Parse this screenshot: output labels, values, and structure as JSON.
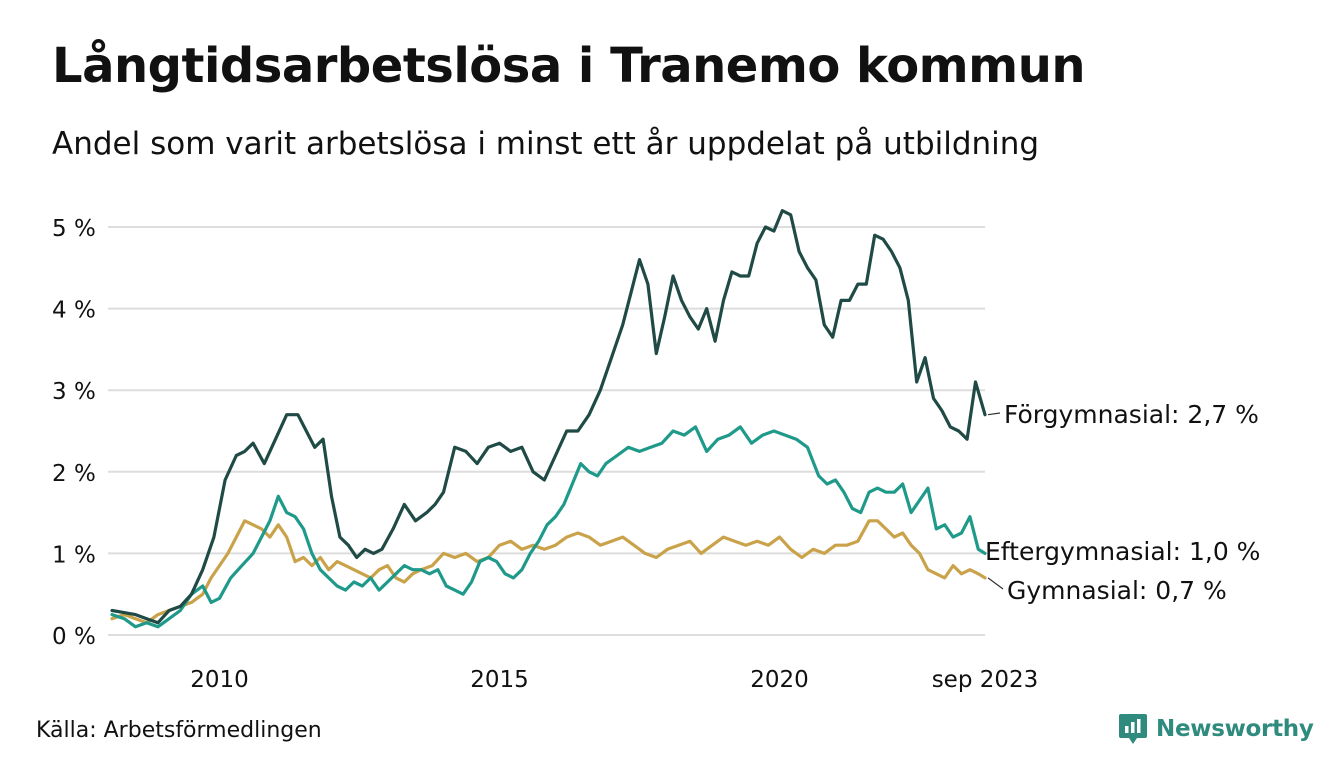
{
  "title": "Långtidsarbetslösa i Tranemo kommun",
  "subtitle": "Andel som varit arbetslösa i minst ett år uppdelat på utbildning",
  "source": "Källa: Arbetsförmedlingen",
  "brand": "Newsworthy",
  "colors": {
    "grid": "#dddddd",
    "brand": "#2e8b7e"
  },
  "chart_data": {
    "type": "line",
    "xlim": [
      2008.08,
      2023.67
    ],
    "ylim": [
      0,
      5.3
    ],
    "yticks": [
      0,
      1,
      2,
      3,
      4,
      5
    ],
    "ytick_labels": [
      "0 %",
      "1 %",
      "2 %",
      "3 %",
      "4 %",
      "5 %"
    ],
    "xticks": [
      2010,
      2015,
      2020,
      2023.67
    ],
    "xtick_labels": [
      "2010",
      "2015",
      "2020",
      "sep 2023"
    ],
    "series": [
      {
        "name": "Förgymnasial",
        "label": "Förgymnasial: 2,7 %",
        "color": "#1f4a45",
        "x": [
          2008.08,
          2008.5,
          2008.7,
          2008.9,
          2009.1,
          2009.3,
          2009.5,
          2009.7,
          2009.9,
          2010.1,
          2010.3,
          2010.45,
          2010.6,
          2010.8,
          2011.0,
          2011.2,
          2011.4,
          2011.55,
          2011.7,
          2011.85,
          2012.0,
          2012.15,
          2012.3,
          2012.45,
          2012.6,
          2012.75,
          2012.9,
          2013.1,
          2013.3,
          2013.5,
          2013.7,
          2013.85,
          2014.0,
          2014.2,
          2014.4,
          2014.6,
          2014.8,
          2015.0,
          2015.2,
          2015.4,
          2015.6,
          2015.8,
          2016.0,
          2016.2,
          2016.4,
          2016.6,
          2016.8,
          2017.0,
          2017.2,
          2017.35,
          2017.5,
          2017.65,
          2017.8,
          2017.95,
          2018.1,
          2018.25,
          2018.4,
          2018.55,
          2018.7,
          2018.85,
          2019.0,
          2019.15,
          2019.3,
          2019.45,
          2019.6,
          2019.75,
          2019.9,
          2020.05,
          2020.2,
          2020.35,
          2020.5,
          2020.65,
          2020.8,
          2020.95,
          2021.1,
          2021.25,
          2021.4,
          2021.55,
          2021.7,
          2021.85,
          2022.0,
          2022.15,
          2022.3,
          2022.45,
          2022.6,
          2022.75,
          2022.9,
          2023.05,
          2023.2,
          2023.35,
          2023.5,
          2023.67
        ],
        "y": [
          0.3,
          0.25,
          0.2,
          0.15,
          0.3,
          0.35,
          0.5,
          0.8,
          1.2,
          1.9,
          2.2,
          2.25,
          2.35,
          2.1,
          2.4,
          2.7,
          2.7,
          2.5,
          2.3,
          2.4,
          1.7,
          1.2,
          1.1,
          0.95,
          1.05,
          1.0,
          1.05,
          1.3,
          1.6,
          1.4,
          1.5,
          1.6,
          1.75,
          2.3,
          2.25,
          2.1,
          2.3,
          2.35,
          2.25,
          2.3,
          2.0,
          1.9,
          2.2,
          2.5,
          2.5,
          2.7,
          3.0,
          3.4,
          3.8,
          4.2,
          4.6,
          4.3,
          3.45,
          3.9,
          4.4,
          4.1,
          3.9,
          3.75,
          4.0,
          3.6,
          4.1,
          4.45,
          4.4,
          4.4,
          4.8,
          5.0,
          4.95,
          5.2,
          5.15,
          4.7,
          4.5,
          4.35,
          3.8,
          3.65,
          4.1,
          4.1,
          4.3,
          4.3,
          4.9,
          4.85,
          4.7,
          4.5,
          4.1,
          3.1,
          3.4,
          2.9,
          2.75,
          2.55,
          2.5,
          2.4,
          3.1,
          2.7
        ]
      },
      {
        "name": "Eftergymnasial",
        "label": "Eftergymnasial: 1,0 %",
        "color": "#1f9a8a",
        "x": [
          2008.08,
          2008.3,
          2008.5,
          2008.7,
          2008.9,
          2009.1,
          2009.3,
          2009.5,
          2009.7,
          2009.85,
          2010.0,
          2010.2,
          2010.4,
          2010.6,
          2010.75,
          2010.9,
          2011.05,
          2011.2,
          2011.35,
          2011.5,
          2011.65,
          2011.8,
          2011.95,
          2012.1,
          2012.25,
          2012.4,
          2012.55,
          2012.7,
          2012.85,
          2013.0,
          2013.15,
          2013.3,
          2013.45,
          2013.6,
          2013.75,
          2013.9,
          2014.05,
          2014.2,
          2014.35,
          2014.5,
          2014.65,
          2014.8,
          2014.95,
          2015.1,
          2015.25,
          2015.4,
          2015.55,
          2015.7,
          2015.85,
          2016.0,
          2016.15,
          2016.3,
          2016.45,
          2016.6,
          2016.75,
          2016.9,
          2017.1,
          2017.3,
          2017.5,
          2017.7,
          2017.9,
          2018.1,
          2018.3,
          2018.5,
          2018.7,
          2018.9,
          2019.1,
          2019.3,
          2019.5,
          2019.7,
          2019.9,
          2020.1,
          2020.3,
          2020.5,
          2020.7,
          2020.85,
          2021.0,
          2021.15,
          2021.3,
          2021.45,
          2021.6,
          2021.75,
          2021.9,
          2022.05,
          2022.2,
          2022.35,
          2022.5,
          2022.65,
          2022.8,
          2022.95,
          2023.1,
          2023.25,
          2023.4,
          2023.55,
          2023.67
        ],
        "y": [
          0.25,
          0.2,
          0.1,
          0.15,
          0.1,
          0.2,
          0.3,
          0.5,
          0.6,
          0.4,
          0.45,
          0.7,
          0.85,
          1.0,
          1.2,
          1.4,
          1.7,
          1.5,
          1.45,
          1.3,
          1.0,
          0.8,
          0.7,
          0.6,
          0.55,
          0.65,
          0.6,
          0.7,
          0.55,
          0.65,
          0.75,
          0.85,
          0.8,
          0.8,
          0.75,
          0.8,
          0.6,
          0.55,
          0.5,
          0.65,
          0.9,
          0.95,
          0.9,
          0.75,
          0.7,
          0.8,
          1.0,
          1.15,
          1.35,
          1.45,
          1.6,
          1.85,
          2.1,
          2.0,
          1.95,
          2.1,
          2.2,
          2.3,
          2.25,
          2.3,
          2.35,
          2.5,
          2.45,
          2.55,
          2.25,
          2.4,
          2.45,
          2.55,
          2.35,
          2.45,
          2.5,
          2.45,
          2.4,
          2.3,
          1.95,
          1.85,
          1.9,
          1.75,
          1.55,
          1.5,
          1.75,
          1.8,
          1.75,
          1.75,
          1.85,
          1.5,
          1.65,
          1.8,
          1.3,
          1.35,
          1.2,
          1.25,
          1.45,
          1.05,
          1.0
        ]
      },
      {
        "name": "Gymnasial",
        "label": "Gymnasial: 0,7 %",
        "color": "#c9a24a",
        "x": [
          2008.08,
          2008.3,
          2008.5,
          2008.7,
          2008.9,
          2009.1,
          2009.3,
          2009.5,
          2009.7,
          2009.85,
          2010.0,
          2010.15,
          2010.3,
          2010.45,
          2010.6,
          2010.75,
          2010.9,
          2011.05,
          2011.2,
          2011.35,
          2011.5,
          2011.65,
          2011.8,
          2011.95,
          2012.1,
          2012.25,
          2012.4,
          2012.55,
          2012.7,
          2012.85,
          2013.0,
          2013.15,
          2013.3,
          2013.45,
          2013.6,
          2013.8,
          2014.0,
          2014.2,
          2014.4,
          2014.6,
          2014.8,
          2015.0,
          2015.2,
          2015.4,
          2015.6,
          2015.8,
          2016.0,
          2016.2,
          2016.4,
          2016.6,
          2016.8,
          2017.0,
          2017.2,
          2017.4,
          2017.6,
          2017.8,
          2018.0,
          2018.2,
          2018.4,
          2018.6,
          2018.8,
          2019.0,
          2019.2,
          2019.4,
          2019.6,
          2019.8,
          2020.0,
          2020.2,
          2020.4,
          2020.6,
          2020.8,
          2021.0,
          2021.2,
          2021.4,
          2021.6,
          2021.75,
          2021.9,
          2022.05,
          2022.2,
          2022.35,
          2022.5,
          2022.65,
          2022.8,
          2022.95,
          2023.1,
          2023.25,
          2023.4,
          2023.55,
          2023.67
        ],
        "y": [
          0.2,
          0.25,
          0.2,
          0.15,
          0.25,
          0.3,
          0.35,
          0.4,
          0.5,
          0.7,
          0.85,
          1.0,
          1.2,
          1.4,
          1.35,
          1.3,
          1.2,
          1.35,
          1.2,
          0.9,
          0.95,
          0.85,
          0.95,
          0.8,
          0.9,
          0.85,
          0.8,
          0.75,
          0.7,
          0.8,
          0.85,
          0.7,
          0.65,
          0.75,
          0.8,
          0.85,
          1.0,
          0.95,
          1.0,
          0.9,
          0.95,
          1.1,
          1.15,
          1.05,
          1.1,
          1.05,
          1.1,
          1.2,
          1.25,
          1.2,
          1.1,
          1.15,
          1.2,
          1.1,
          1.0,
          0.95,
          1.05,
          1.1,
          1.15,
          1.0,
          1.1,
          1.2,
          1.15,
          1.1,
          1.15,
          1.1,
          1.2,
          1.05,
          0.95,
          1.05,
          1.0,
          1.1,
          1.1,
          1.15,
          1.4,
          1.4,
          1.3,
          1.2,
          1.25,
          1.1,
          1.0,
          0.8,
          0.75,
          0.7,
          0.85,
          0.75,
          0.8,
          0.75,
          0.7
        ]
      }
    ]
  }
}
